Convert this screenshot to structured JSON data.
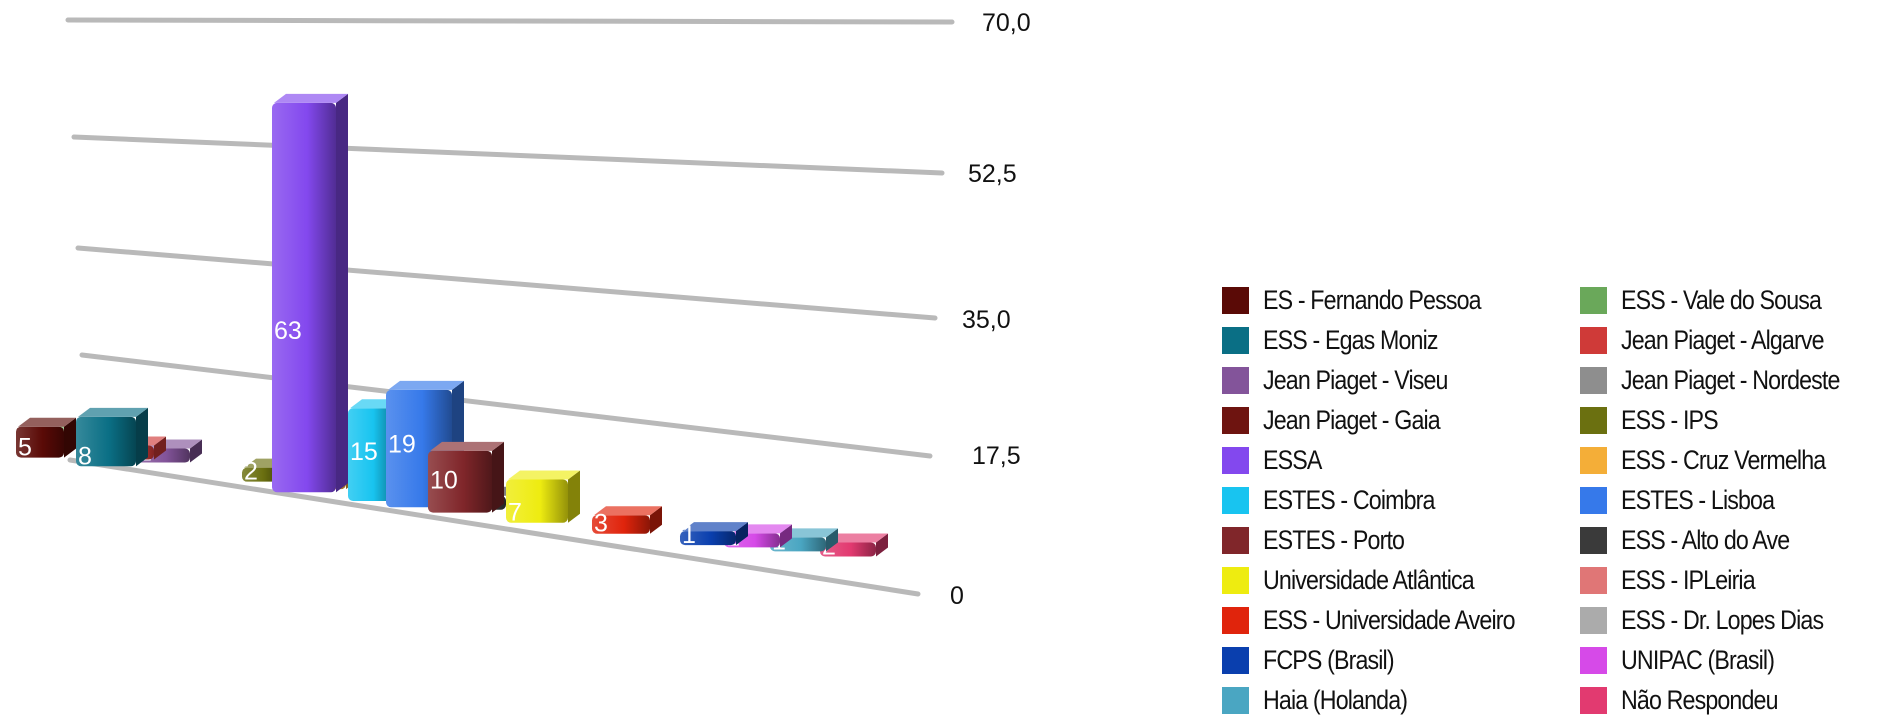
{
  "chart_data": {
    "type": "bar",
    "ylim": [
      0,
      70
    ],
    "y_ticks": [
      "0",
      "17,5",
      "35,0",
      "52,5",
      "70,0"
    ],
    "y_tick_values": [
      0,
      17.5,
      35,
      52.5,
      70
    ],
    "grid": true,
    "legend_position": "right",
    "categories": [
      "ES - Fernando Pessoa",
      "ESS - Vale do Sousa",
      "ESS - Egas Moniz",
      "Jean Piaget - Algarve",
      "Jean Piaget - Viseu",
      "Jean Piaget - Nordeste",
      "Jean Piaget - Gaia",
      "ESS - IPS",
      "ESSA",
      "ESS - Cruz Vermelha",
      "ESTES - Coimbra",
      "ESTES - Lisboa",
      "ESTES - Porto",
      "ESS - Alto do Ave",
      "Universidade Atlântica",
      "ESS - IPLeiria",
      "ESS - Universidade Aveiro",
      "ESS - Dr. Lopes Dias",
      "FCPS (Brasil)",
      "UNIPAC (Brasil)",
      "Haia (Holanda)",
      "Não Respondeu"
    ],
    "colors": [
      "#5a0a06",
      "#6aa85a",
      "#0a6f85",
      "#cf3a38",
      "#83549a",
      "#8e8e8e",
      "#6e1410",
      "#6b7010",
      "#8348ee",
      "#f4ae38",
      "#18c4f0",
      "#3679ea",
      "#80262a",
      "#3a3a3a",
      "#eeec10",
      "#e07676",
      "#e0240c",
      "#ababab",
      "#0a3fae",
      "#d64ae8",
      "#4aa6c2",
      "#e23a70"
    ],
    "series": [
      {
        "values": [
          5,
          null,
          8,
          null,
          null,
          null,
          null,
          2,
          63,
          1,
          15,
          19,
          10,
          1,
          7,
          null,
          3,
          null,
          1,
          1,
          1,
          2
        ]
      },
      {
        "values": [
          null,
          1,
          null,
          1,
          1,
          null,
          null,
          null,
          null,
          null,
          null,
          null,
          null,
          null,
          null,
          null,
          null,
          null,
          null,
          null,
          null,
          null
        ]
      }
    ]
  }
}
